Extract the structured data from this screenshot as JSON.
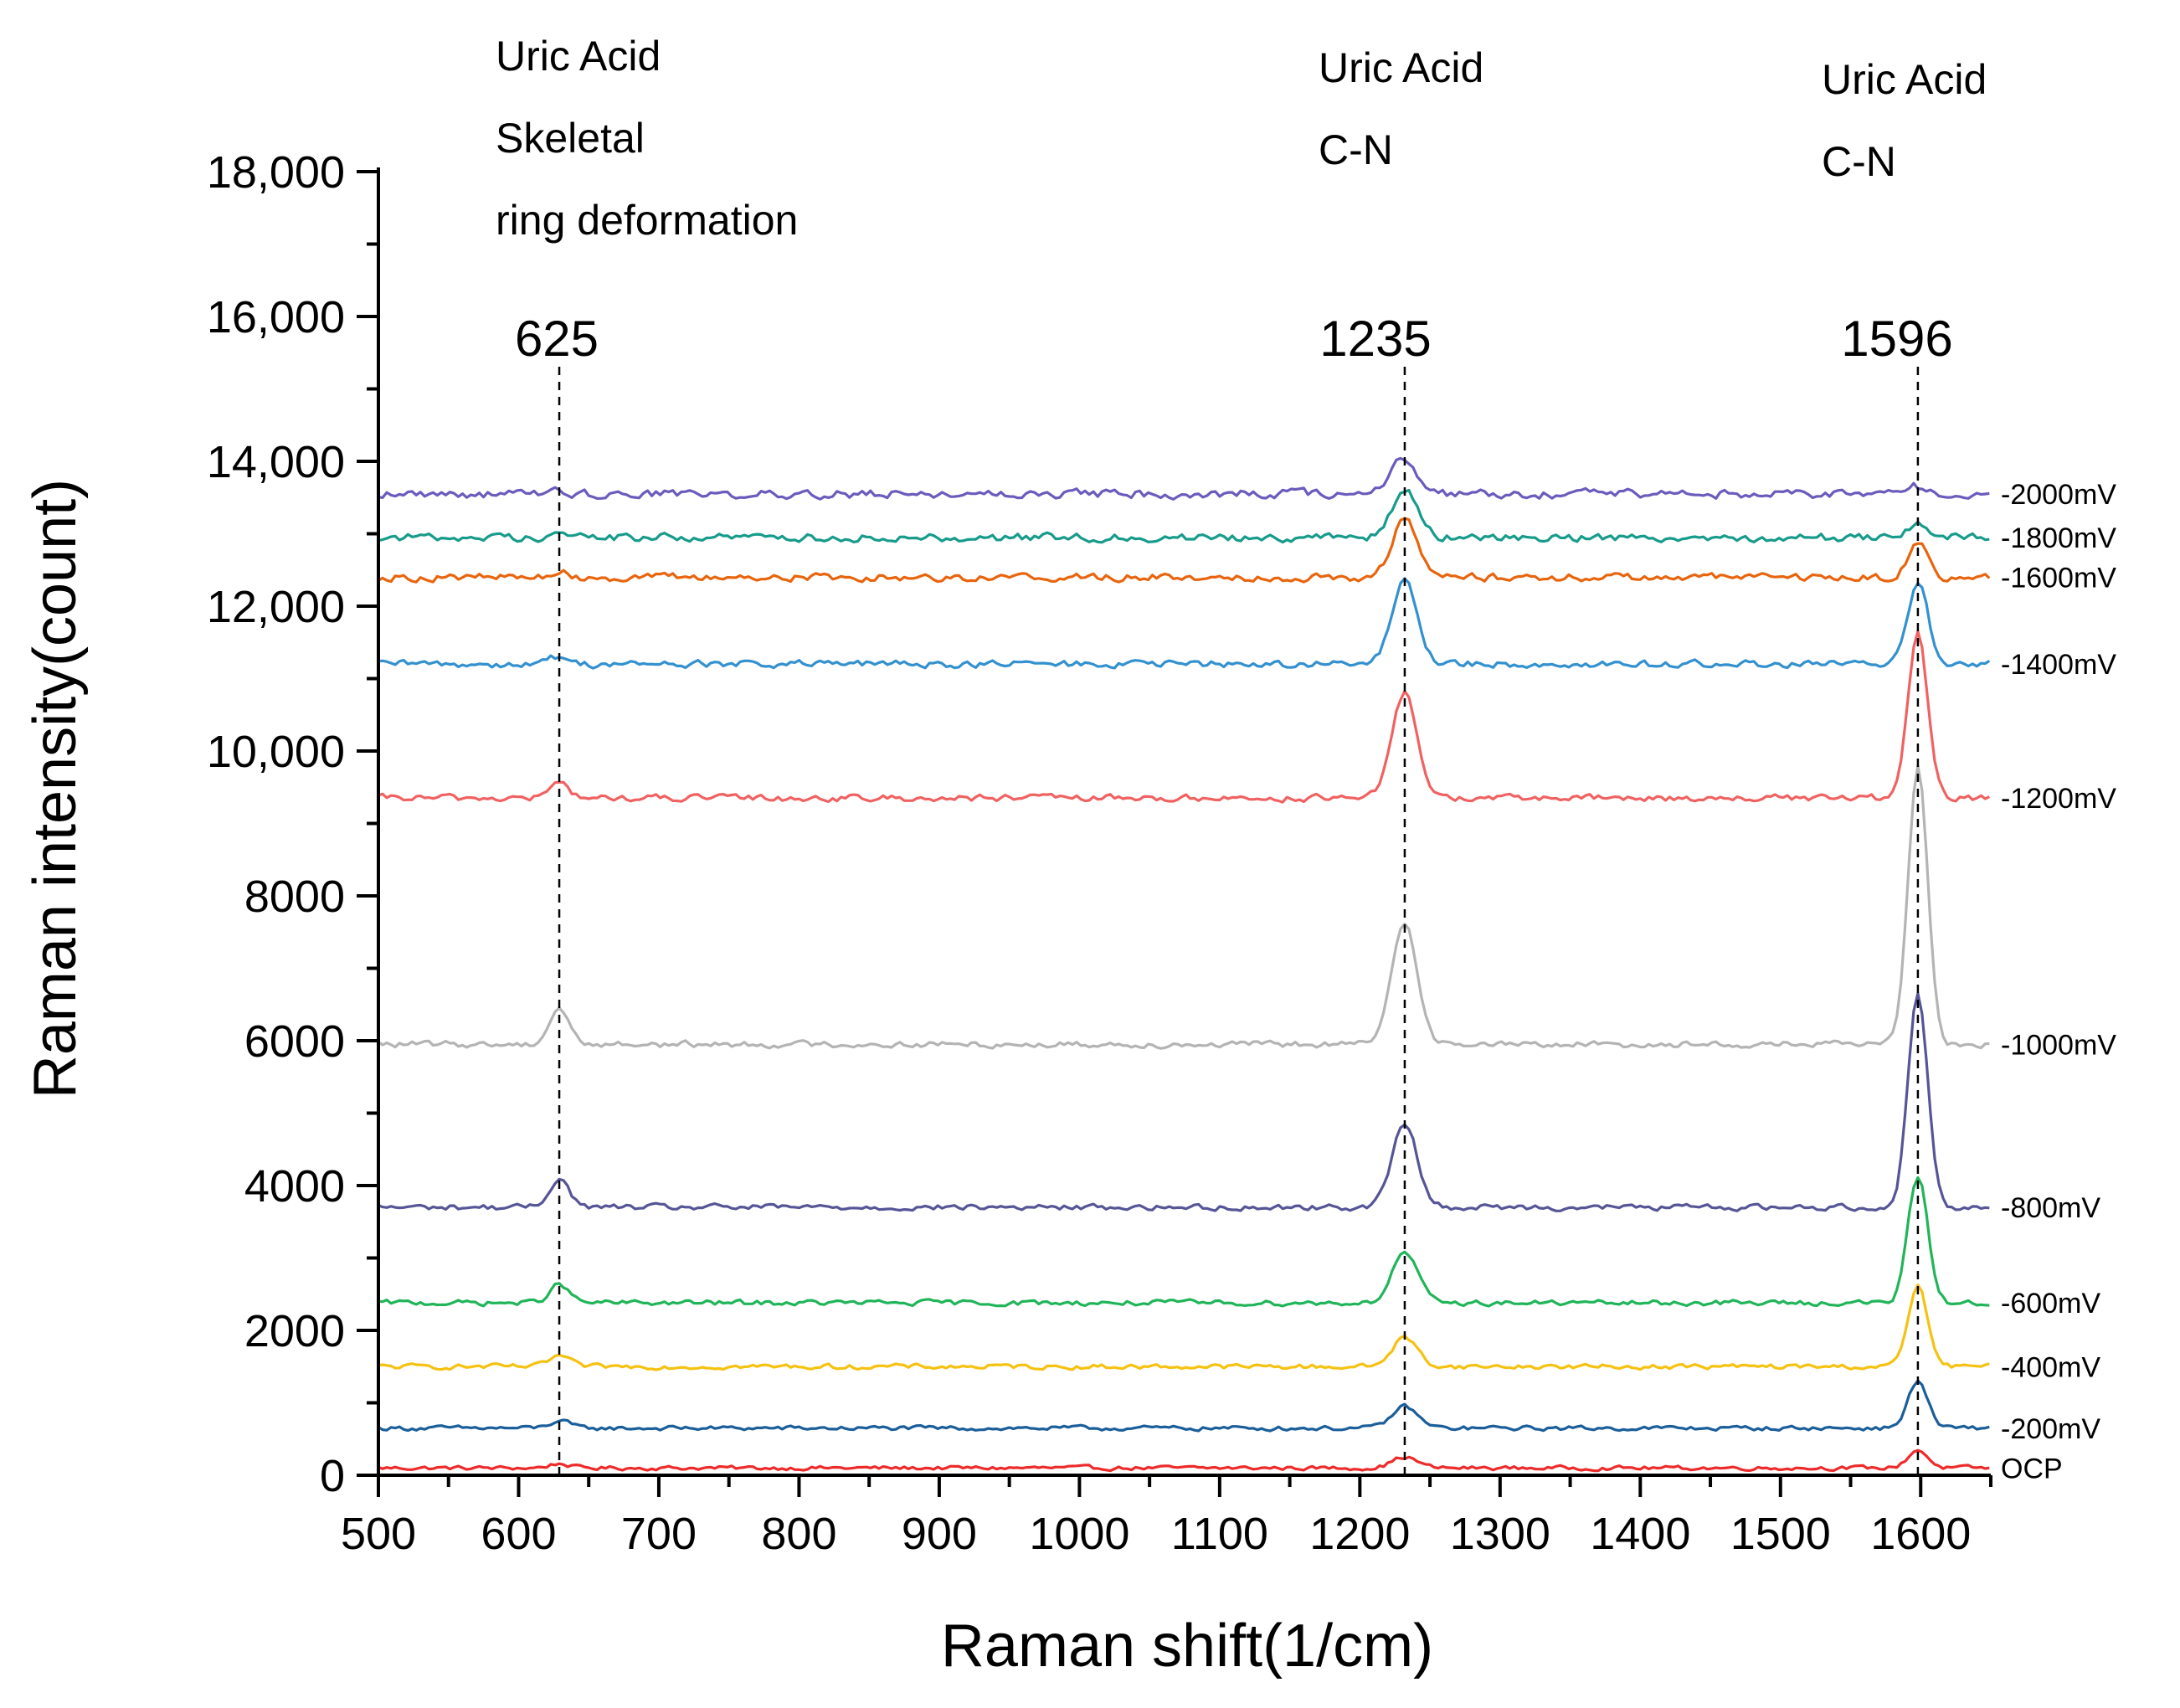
{
  "chart_data": {
    "type": "line",
    "title": "",
    "xlabel": "Raman shift(1/cm)",
    "ylabel": "Raman intensity(count)",
    "xlim": [
      500,
      1650
    ],
    "ylim": [
      0,
      18000
    ],
    "xticks": [
      500,
      600,
      700,
      800,
      900,
      1000,
      1100,
      1200,
      1300,
      1400,
      1500,
      1600
    ],
    "xtick_labels": [
      "500",
      "600",
      "700",
      "800",
      "900",
      "1000",
      "1100",
      "1200",
      "1300",
      "1400",
      "1500",
      "1600"
    ],
    "yticks": [
      0,
      2000,
      4000,
      6000,
      8000,
      10000,
      12000,
      14000,
      16000,
      18000
    ],
    "ytick_labels": [
      "0",
      "2000",
      "4000",
      "6000",
      "8000",
      "10,000",
      "12,000",
      "14,000",
      "16,000",
      "18,000"
    ],
    "annotations": [
      {
        "x": 625,
        "value": "625",
        "lines": [
          "Uric Acid",
          "Skeletal",
          "ring deformation"
        ]
      },
      {
        "x": 1235,
        "value": "1235",
        "lines": [
          "Uric Acid",
          "C-N"
        ]
      },
      {
        "x": 1596,
        "value": "1596",
        "lines": [
          "Uric Acid",
          "C-N"
        ]
      }
    ],
    "peak_shape_note": "Each series is a noisy baseline with Gaussian peaks at 625, 1235 and 1596 1/cm.",
    "series": [
      {
        "name": "OCP",
        "color": "#ee2b2b",
        "baseline": 100,
        "peaks": {
          "625": 60,
          "1235": 150,
          "1596": 250
        }
      },
      {
        "name": "-200mV",
        "color": "#1a5e9a",
        "baseline": 650,
        "peaks": {
          "625": 100,
          "1235": 300,
          "1596": 650
        }
      },
      {
        "name": "-400mV",
        "color": "#f5c211",
        "baseline": 1500,
        "peaks": {
          "625": 150,
          "1235": 400,
          "1596": 1100
        }
      },
      {
        "name": "-600mV",
        "color": "#21b55a",
        "baseline": 2380,
        "peaks": {
          "625": 250,
          "1235": 700,
          "1596": 1750
        }
      },
      {
        "name": "-800mV",
        "color": "#555597",
        "baseline": 3700,
        "peaks": {
          "625": 400,
          "1235": 1150,
          "1596": 2950
        }
      },
      {
        "name": "-1000mV",
        "color": "#b4b4b4",
        "baseline": 5950,
        "peaks": {
          "625": 500,
          "1235": 1700,
          "1596": 3850
        }
      },
      {
        "name": "-1200mV",
        "color": "#f06262",
        "baseline": 9350,
        "peaks": {
          "625": 200,
          "1235": 1450,
          "1596": 2250
        }
      },
      {
        "name": "-1400mV",
        "color": "#3391cf",
        "baseline": 11200,
        "peaks": {
          "625": 100,
          "1235": 1150,
          "1596": 1150
        }
      },
      {
        "name": "-1600mV",
        "color": "#e8650e",
        "baseline": 12400,
        "peaks": {
          "625": 60,
          "1235": 800,
          "1596": 450
        }
      },
      {
        "name": "-1800mV",
        "color": "#179b8b",
        "baseline": 12950,
        "peaks": {
          "625": 60,
          "1235": 650,
          "1596": 200
        }
      },
      {
        "name": "-2000mV",
        "color": "#6b5bbd",
        "baseline": 13550,
        "peaks": {
          "625": 30,
          "1235": 500,
          "1596": 100
        }
      }
    ]
  }
}
